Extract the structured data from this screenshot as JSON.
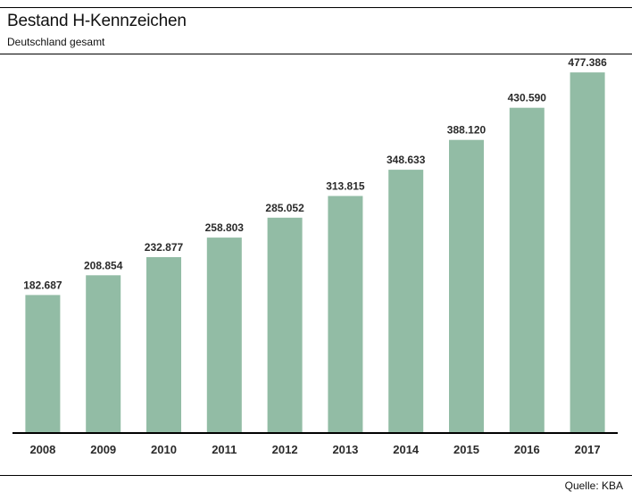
{
  "title": "Bestand H-Kennzeichen",
  "subtitle": "Deutschland gesamt",
  "source": "Quelle: KBA",
  "colors": {
    "bar": "#92bca5",
    "axis": "#000000",
    "text": "#2a2a2a"
  },
  "chart_data": {
    "type": "bar",
    "title": "Bestand H-Kennzeichen",
    "subtitle": "Deutschland gesamt",
    "categories": [
      "2008",
      "2009",
      "2010",
      "2011",
      "2012",
      "2013",
      "2014",
      "2015",
      "2016",
      "2017"
    ],
    "values": [
      182687,
      208854,
      232877,
      258803,
      285052,
      313815,
      348633,
      388120,
      430590,
      477386
    ],
    "value_labels": [
      "182.687",
      "208.854",
      "232.877",
      "258.803",
      "285.052",
      "313.815",
      "348.633",
      "388.120",
      "430.590",
      "477.386"
    ],
    "xlabel": "",
    "ylabel": "",
    "ylim": [
      0,
      500000
    ],
    "grid": false,
    "legend": "none"
  }
}
